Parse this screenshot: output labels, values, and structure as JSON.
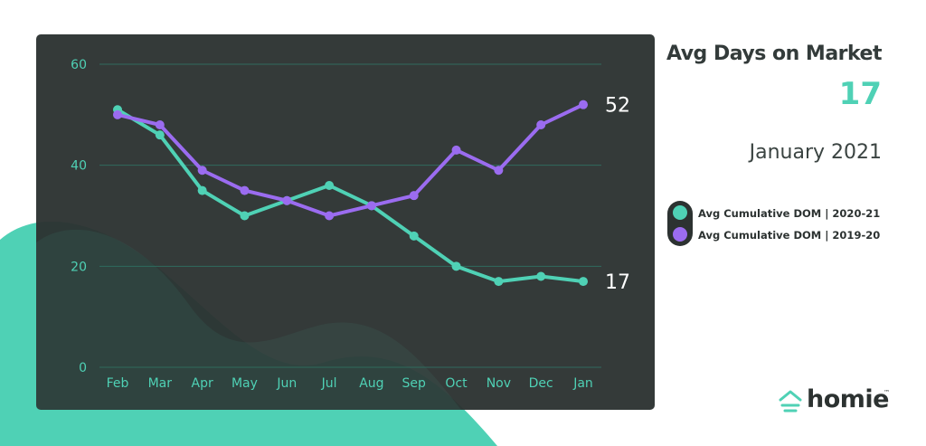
{
  "colors": {
    "teal": "#4fd1b5",
    "purple": "#9b6cf0",
    "panel": "#2c3231",
    "blob": "#4fd1b5"
  },
  "stat": {
    "title": "Avg Days on Market",
    "value": "17",
    "date": "January 2021"
  },
  "legend": [
    {
      "label": "Avg Cumulative DOM  |  2020-21",
      "color": "#4fd1b5"
    },
    {
      "label": "Avg Cumulative DOM  |  2019-20",
      "color": "#9b6cf0"
    }
  ],
  "logo": {
    "text": "homie",
    "tm": "™",
    "icon": "house-icon"
  },
  "chart_data": {
    "type": "line",
    "categories": [
      "Feb",
      "Mar",
      "Apr",
      "May",
      "Jun",
      "Jul",
      "Aug",
      "Sep",
      "Oct",
      "Nov",
      "Dec",
      "Jan"
    ],
    "ylim": [
      0,
      60
    ],
    "yticks": [
      0,
      20,
      40,
      60
    ],
    "grid": true,
    "series": [
      {
        "name": "Avg Cumulative DOM  |  2020-21",
        "color": "#4fd1b5",
        "values": [
          51,
          46,
          35,
          30,
          33,
          36,
          32,
          26,
          20,
          17,
          18,
          17
        ],
        "end_label": "17"
      },
      {
        "name": "Avg Cumulative DOM  |  2019-20",
        "color": "#9b6cf0",
        "values": [
          50,
          48,
          39,
          35,
          33,
          30,
          32,
          34,
          43,
          39,
          48,
          52
        ],
        "end_label": "52"
      }
    ],
    "title": "",
    "xlabel": "",
    "ylabel": ""
  }
}
